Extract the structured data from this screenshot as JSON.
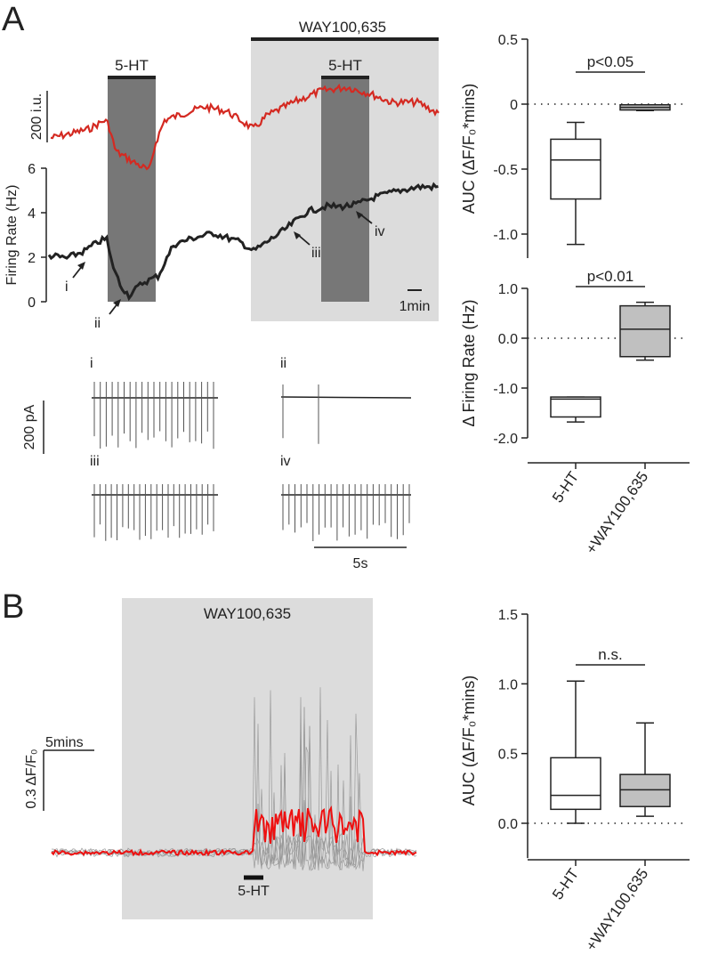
{
  "panel_a": {
    "label": "A",
    "drug_label": "WAY100,635",
    "agonist_label_1": "5-HT",
    "agonist_label_2": "5-HT",
    "fluor_scale": "200 i.u.",
    "rate_axis_label": "Firing Rate (Hz)",
    "rate_ticks": [
      "0",
      "2",
      "4",
      "6"
    ],
    "time_scale": "1min",
    "markers": [
      "i",
      "ii",
      "iii",
      "iv"
    ],
    "current_scale": "200 pA",
    "sweep_scale": "5s",
    "sweep_labels": [
      "i",
      "ii",
      "iii",
      "iv"
    ]
  },
  "panel_b": {
    "label": "B",
    "drug_label": "WAY100,635",
    "agonist_label": "5-HT",
    "fluor_scale": "0.3 ΔF/F₀",
    "time_scale": "5mins"
  },
  "colors": {
    "fluorescence": "#d42a22",
    "rate": "#222222",
    "drug_shade": "#dcdcdc",
    "agonist_shade": "#777777",
    "box_gray": "#c0c0c0"
  },
  "chart_data": [
    {
      "type": "box",
      "title": "",
      "ylabel": "AUC (ΔF/F₀*mins)",
      "ylim": [
        -1.2,
        0.5
      ],
      "yticks": [
        "0.5",
        "0",
        "-0.5",
        "-1.0"
      ],
      "categories": [
        "5-HT",
        "+WAY100,635"
      ],
      "boxes": [
        {
          "name": "5-HT",
          "min": -1.08,
          "q1": -0.73,
          "median": -0.43,
          "q3": -0.27,
          "max": -0.14,
          "fill": "white"
        },
        {
          "name": "+WAY100,635",
          "min": -0.05,
          "q1": -0.045,
          "median": -0.025,
          "q3": -0.005,
          "max": -0.005,
          "fill": "gray"
        }
      ],
      "annotation": "p<0.05"
    },
    {
      "type": "box",
      "title": "",
      "ylabel": "Δ Firing Rate (Hz)",
      "ylim": [
        -2.2,
        1.0
      ],
      "yticks": [
        "1.0",
        "0.0",
        "-1.0",
        "-2.0"
      ],
      "categories": [
        "5-HT",
        "+WAY100,635"
      ],
      "boxes": [
        {
          "name": "5-HT",
          "min": -1.68,
          "q1": -1.58,
          "median": -1.22,
          "q3": -1.18,
          "max": -1.18,
          "fill": "white"
        },
        {
          "name": "+WAY100,635",
          "min": -0.44,
          "q1": -0.37,
          "median": 0.18,
          "q3": 0.65,
          "max": 0.72,
          "fill": "gray"
        }
      ],
      "annotation": "p<0.01"
    },
    {
      "type": "box",
      "title": "",
      "ylabel": "AUC (ΔF/F₀*mins)",
      "ylim": [
        -0.25,
        1.5
      ],
      "yticks": [
        "1.5",
        "1.0",
        "0.5",
        "0.0"
      ],
      "categories": [
        "5-HT",
        "+WAY100,635"
      ],
      "boxes": [
        {
          "name": "5-HT",
          "min": 0.0,
          "q1": 0.1,
          "median": 0.2,
          "q3": 0.47,
          "max": 1.02,
          "fill": "white"
        },
        {
          "name": "+WAY100,635",
          "min": 0.05,
          "q1": 0.12,
          "median": 0.24,
          "q3": 0.35,
          "max": 0.72,
          "fill": "gray"
        }
      ],
      "annotation": "n.s."
    }
  ]
}
